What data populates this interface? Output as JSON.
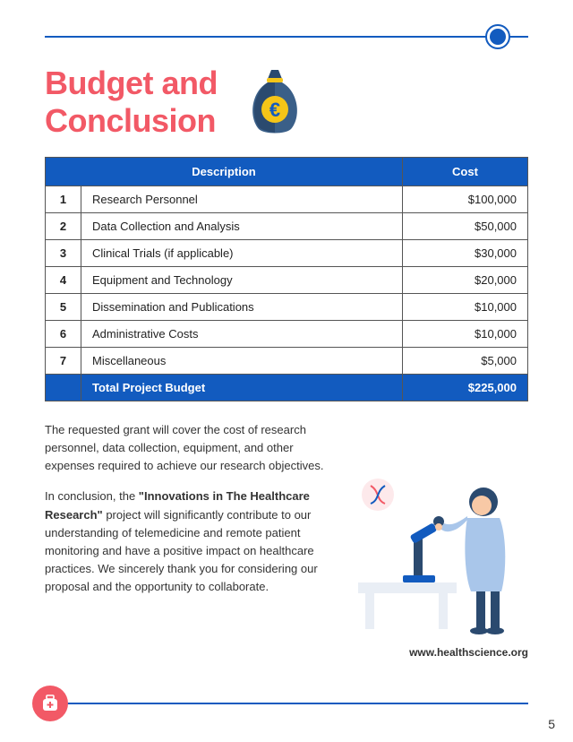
{
  "accent_blue": "#125bbf",
  "accent_red": "#f25966",
  "header": {
    "title_line1": "Budget and",
    "title_line2": "Conclusion"
  },
  "money_icon": {
    "currency": "€",
    "bag_color": "#2b4a6f",
    "coin_color": "#f5c518"
  },
  "table": {
    "headers": {
      "description": "Description",
      "cost": "Cost"
    },
    "rows": [
      {
        "n": "1",
        "desc": "Research Personnel",
        "cost": "$100,000"
      },
      {
        "n": "2",
        "desc": "Data Collection and Analysis",
        "cost": "$50,000"
      },
      {
        "n": "3",
        "desc": "Clinical Trials (if applicable)",
        "cost": "$30,000"
      },
      {
        "n": "4",
        "desc": "Equipment and Technology",
        "cost": "$20,000"
      },
      {
        "n": "5",
        "desc": "Dissemination and Publications",
        "cost": "$10,000"
      },
      {
        "n": "6",
        "desc": "Administrative Costs",
        "cost": "$10,000"
      },
      {
        "n": "7",
        "desc": "Miscellaneous",
        "cost": "$5,000"
      }
    ],
    "total": {
      "label": "Total Project Budget",
      "cost": "$225,000"
    }
  },
  "paragraphs": {
    "p1": "The requested grant will cover the cost of research personnel, data collection, equipment, and other expenses required to achieve our research objectives.",
    "p2a": "In conclusion, the ",
    "p2bold": "\"Innovations in The Healthcare Research\"",
    "p2b": " project will significantly contribute to our understanding of telemedicine and remote patient monitoring and have a positive impact on healthcare practices. We sincerely thank you for considering our proposal and the opportunity to collaborate."
  },
  "website": "www.healthscience.org",
  "page_number": "5"
}
